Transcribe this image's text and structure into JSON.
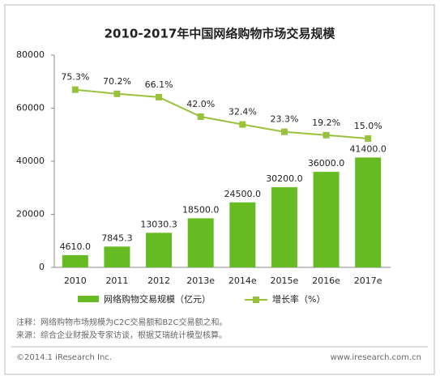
{
  "chart_data": {
    "type": "bar-line",
    "title": "2010-2017年中国网络购物市场交易规模",
    "categories": [
      "2010",
      "2011",
      "2012",
      "2013e",
      "2014e",
      "2015e",
      "2016e",
      "2017e"
    ],
    "series": [
      {
        "name": "网络购物交易规模（亿元）",
        "color": "#66bb22",
        "type": "bar",
        "values": [
          4610,
          7845.3,
          13030.3,
          18500,
          24500,
          30200,
          36000,
          41400
        ],
        "value_labels": [
          "4610.0",
          "7845.3",
          "13030.3",
          "18500.0",
          "24500.0",
          "30200.0",
          "36000.0",
          "41400.0"
        ]
      },
      {
        "name": "增长率（%）",
        "color": "#99c23c",
        "type": "line",
        "axis": "y2",
        "values": [
          75.3,
          70.2,
          66.1,
          42.0,
          32.4,
          23.3,
          19.2,
          15.0
        ],
        "value_labels": [
          "75.3%",
          "70.2%",
          "66.1%",
          "42.0%",
          "32.4%",
          "23.3%",
          "19.2%",
          "15.0%"
        ]
      }
    ],
    "ylim": [
      0,
      80000
    ],
    "yticks": [
      0,
      20000,
      40000,
      60000,
      80000
    ],
    "y2lim": [
      -144,
      118
    ],
    "notes": [
      "注释：网络购物市场规模为C2C交易额和B2C交易额之和。",
      "来源：综合企业财报及专家访谈，根据艾瑞统计模型核算。"
    ],
    "footer_left": "©2014.1 iResearch Inc.",
    "footer_right": "www.iresearch.com.cn"
  }
}
